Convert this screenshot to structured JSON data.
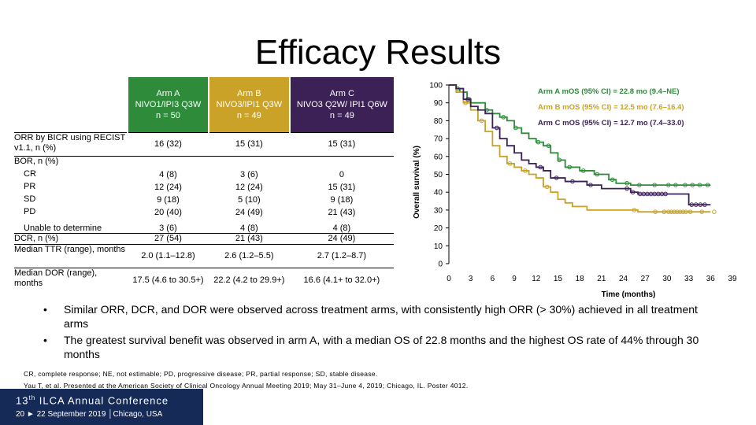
{
  "title": "Efficacy Results",
  "colors": {
    "arm_a": "#2e8b3a",
    "arm_b": "#c9a227",
    "arm_c": "#3b2156",
    "banner": "#162a57"
  },
  "table": {
    "headers": [
      {
        "line1": "Arm A",
        "line2": "NIVO1/IPI3 Q3W",
        "line3": "n = 50",
        "color": "#2e8b3a"
      },
      {
        "line1": "Arm B",
        "line2": "NIVO3/IPI1 Q3W",
        "line3": "n = 49",
        "color": "#c9a227"
      },
      {
        "line1": "Arm C",
        "line2": "NIVO3 Q2W/ IPI1 Q6W",
        "line3": "n = 49",
        "color": "#3b2156"
      }
    ],
    "rows": [
      {
        "label": "ORR by BICR using RECIST v1.1, n (%)",
        "bold": true,
        "a": "16 (32)",
        "b": "15 (31)",
        "c": "15 (31)"
      },
      {
        "label": "BOR, n (%)",
        "bold": true,
        "a": "",
        "b": "",
        "c": ""
      },
      {
        "label": "CR",
        "bold": false,
        "a": "4 (8)",
        "b": "3 (6)",
        "c": "0"
      },
      {
        "label": "PR",
        "bold": false,
        "a": "12 (24)",
        "b": "12 (24)",
        "c": "15 (31)"
      },
      {
        "label": "SD",
        "bold": false,
        "a": "9 (18)",
        "b": "5 (10)",
        "c": "9 (18)"
      },
      {
        "label": "PD",
        "bold": false,
        "a": "20 (40)",
        "b": "24 (49)",
        "c": "21 (43)"
      },
      {
        "label": "Unable to determine",
        "bold": false,
        "a": "3 (6)",
        "b": "4 (8)",
        "c": "4 (8)"
      },
      {
        "label": "DCR, n (%)",
        "bold": true,
        "a": "27 (54)",
        "b": "21 (43)",
        "c": "24 (49)"
      },
      {
        "label": "Median TTR (range), months",
        "bold": true,
        "a": "2.0 (1.1–12.8)",
        "b": "2.6 (1.2–5.5)",
        "c": "2.7 (1.2–8.7)"
      },
      {
        "label": "Median DOR (range), months",
        "bold": true,
        "a": "17.5 (4.6 to 30.5+)",
        "b": "22.2 (4.2 to 29.9+)",
        "c": "16.6 (4.1+ to 32.0+)"
      }
    ]
  },
  "chart_data": {
    "type": "line",
    "subtype": "kaplan-meier step",
    "title": "",
    "xlabel": "Time (months)",
    "ylabel": "Overall survival (%)",
    "xlim": [
      0,
      39
    ],
    "ylim": [
      0,
      100
    ],
    "xticks": [
      "0",
      "3",
      "6",
      "9",
      "12",
      "15",
      "18",
      "21",
      "24",
      "27",
      "30",
      "33",
      "36",
      "39"
    ],
    "yticks": [
      "0",
      "10",
      "20",
      "30",
      "40",
      "50",
      "60",
      "70",
      "80",
      "90",
      "100"
    ],
    "legend": [
      {
        "name": "Arm A",
        "label": "Arm A mOS (95% CI) = 22.8 mo (9.4–NE)",
        "color": "#2e8b3a"
      },
      {
        "name": "Arm B",
        "label": "Arm B mOS (95% CI) = 12.5 mo (7.6–16.4)",
        "color": "#c9a227"
      },
      {
        "name": "Arm C",
        "label": "Arm C mOS (95% CI) = 12.7 mo (7.4–33.0)",
        "color": "#3b2156"
      }
    ],
    "series": [
      {
        "name": "Arm A",
        "color": "#2e8b3a",
        "points": [
          [
            0,
            100
          ],
          [
            1,
            98
          ],
          [
            1.5,
            96
          ],
          [
            2.5,
            92
          ],
          [
            3,
            90
          ],
          [
            5,
            86
          ],
          [
            6,
            84
          ],
          [
            7,
            82
          ],
          [
            8,
            80
          ],
          [
            9,
            76
          ],
          [
            10,
            73
          ],
          [
            11,
            70
          ],
          [
            12,
            68
          ],
          [
            13,
            66
          ],
          [
            14,
            62
          ],
          [
            15,
            58
          ],
          [
            16,
            54
          ],
          [
            18,
            52
          ],
          [
            20,
            50
          ],
          [
            22,
            47
          ],
          [
            23,
            45
          ],
          [
            25,
            44
          ],
          [
            36,
            44
          ]
        ],
        "censor_x": [
          1.2,
          2.8,
          5.2,
          7.5,
          9.2,
          12.3,
          13.7,
          15.2,
          16.6,
          18.5,
          20.4,
          22.5,
          24.5,
          26.2,
          28.3,
          30.2,
          31.2,
          32.5,
          33.5,
          34.5,
          35.6
        ]
      },
      {
        "name": "Arm B",
        "color": "#c9a227",
        "points": [
          [
            0,
            100
          ],
          [
            1,
            96
          ],
          [
            2,
            90
          ],
          [
            3,
            86
          ],
          [
            4,
            80
          ],
          [
            5,
            74
          ],
          [
            6,
            66
          ],
          [
            7,
            60
          ],
          [
            8,
            56
          ],
          [
            9,
            54
          ],
          [
            10,
            52
          ],
          [
            11,
            50
          ],
          [
            12,
            48
          ],
          [
            13,
            43
          ],
          [
            14,
            40
          ],
          [
            15,
            36
          ],
          [
            16,
            34
          ],
          [
            17,
            32
          ],
          [
            19,
            30
          ],
          [
            25,
            30
          ],
          [
            26,
            29
          ],
          [
            30,
            29
          ],
          [
            36,
            29
          ]
        ],
        "censor_x": [
          2.3,
          4.5,
          8.4,
          10.5,
          13.5,
          25.5,
          28.4,
          29.6,
          30.2,
          30.6,
          31.0,
          31.4,
          31.8,
          32.2,
          32.6,
          33.2,
          34.8,
          36.5
        ]
      },
      {
        "name": "Arm C",
        "color": "#3b2156",
        "points": [
          [
            0,
            100
          ],
          [
            1,
            98
          ],
          [
            2,
            92
          ],
          [
            3,
            88
          ],
          [
            4,
            86
          ],
          [
            5,
            84
          ],
          [
            6,
            76
          ],
          [
            7,
            70
          ],
          [
            8,
            66
          ],
          [
            9,
            62
          ],
          [
            10,
            58
          ],
          [
            11,
            56
          ],
          [
            12,
            54
          ],
          [
            13,
            52
          ],
          [
            14,
            48
          ],
          [
            16,
            46
          ],
          [
            19,
            44
          ],
          [
            21,
            42
          ],
          [
            24,
            42
          ],
          [
            25,
            40
          ],
          [
            26,
            39
          ],
          [
            30,
            39
          ],
          [
            33,
            33
          ],
          [
            36,
            33
          ]
        ],
        "censor_x": [
          2.6,
          6.6,
          12.6,
          14.8,
          17.0,
          19.5,
          24.5,
          25.3,
          26.3,
          26.8,
          27.3,
          27.8,
          28.3,
          28.8,
          29.3,
          29.8,
          33.4,
          34.0,
          34.6,
          35.2
        ]
      }
    ]
  },
  "bullets": [
    "Similar ORR, DCR, and DOR were observed across treatment arms, with consistently high ORR (> 30%) achieved in all treatment arms",
    "The greatest survival benefit was observed in arm A, with a median OS of 22.8 months and the highest OS rate of 44% through 30 months"
  ],
  "bullet_char": "•",
  "footnotes": [
    "CR, complete response; NE, not estimable; PD, progressive disease; PR, partial response; SD, stable disease.",
    "Yau T, et al. Presented at the American Society of Clinical Oncology Annual Meeting 2019; May 31–June 4, 2019; Chicago, IL. Poster 4012."
  ],
  "banner": {
    "num": "13",
    "sup": "th",
    "conf": " ILCA Annual Conference",
    "dates": "20 ► 22 September 2019 │Chicago, USA"
  }
}
